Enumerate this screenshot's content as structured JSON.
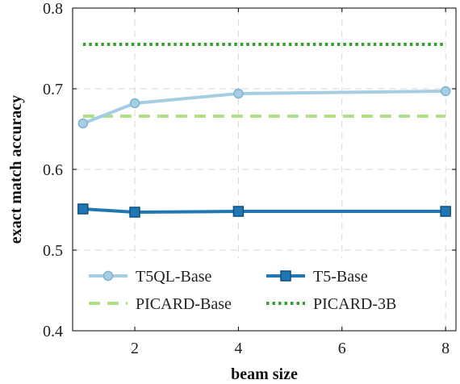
{
  "chart_data": {
    "type": "line",
    "xlabel": "beam size",
    "ylabel": "exact match accuracy",
    "xlim": [
      0.8,
      8.2
    ],
    "ylim": [
      0.4,
      0.8
    ],
    "x_ticks": [
      2,
      4,
      6,
      8
    ],
    "y_ticks": [
      0.4,
      0.5,
      0.6,
      0.7,
      0.8
    ],
    "x_tick_labels": [
      "2",
      "4",
      "6",
      "8"
    ],
    "y_tick_labels": [
      "0.4",
      "0.5",
      "0.6",
      "0.7",
      "0.8"
    ],
    "grid": true,
    "legend_position": "bottom",
    "series": [
      {
        "name": "T5QL-Base",
        "color": "#a6cee3",
        "style": "solid",
        "marker": "circle",
        "x": [
          1,
          2,
          4,
          8
        ],
        "y": [
          0.657,
          0.682,
          0.694,
          0.697
        ]
      },
      {
        "name": "T5-Base",
        "color": "#1f78b4",
        "style": "solid",
        "marker": "square",
        "x": [
          1,
          2,
          4,
          8
        ],
        "y": [
          0.551,
          0.547,
          0.548,
          0.548
        ]
      },
      {
        "name": "PICARD-Base",
        "color": "#b2df8a",
        "style": "dashed",
        "marker": "none",
        "x": [
          1,
          8
        ],
        "y": [
          0.666,
          0.666
        ]
      },
      {
        "name": "PICARD-3B",
        "color": "#33a02c",
        "style": "dotted",
        "marker": "none",
        "x": [
          1,
          8
        ],
        "y": [
          0.755,
          0.755
        ]
      }
    ]
  }
}
